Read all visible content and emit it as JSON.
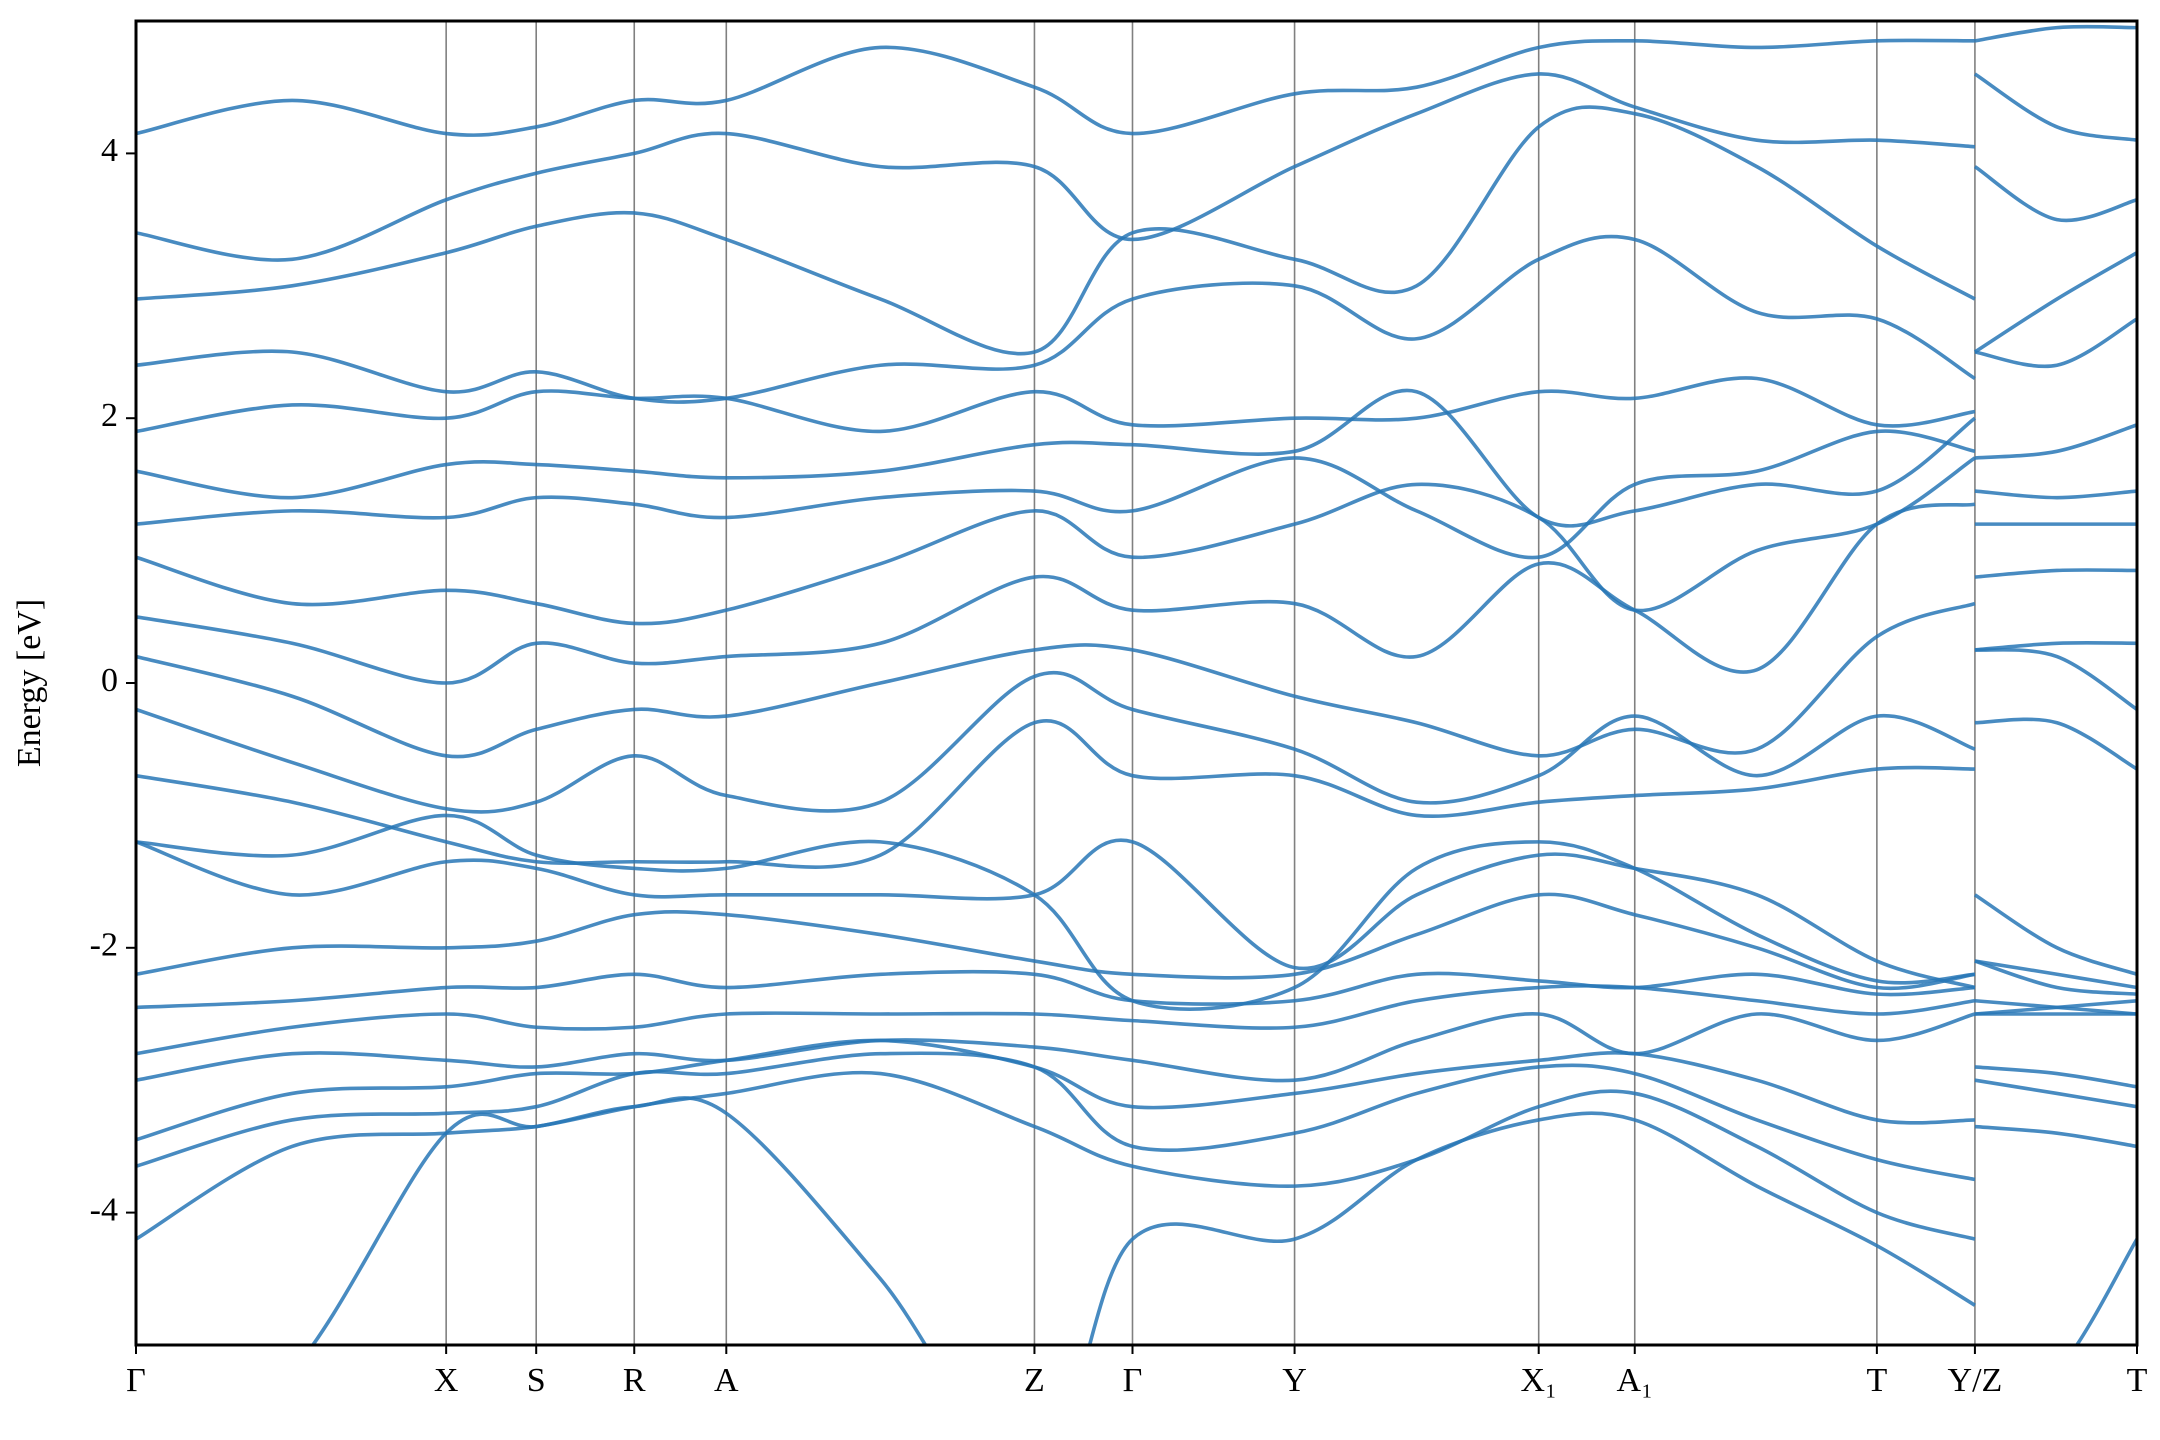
{
  "chart_data": {
    "type": "line",
    "ylabel": "Energy [eV]",
    "color": "#2877b6",
    "xlim": [
      0,
      1
    ],
    "ylim": [
      -5,
      5
    ],
    "yticks": [
      -4,
      -2,
      0,
      2,
      4
    ],
    "xticks": [
      {
        "value": 0,
        "label": "Γ"
      },
      {
        "value": 0.155,
        "label": "X"
      },
      {
        "value": 0.2,
        "label": "S"
      },
      {
        "value": 0.249,
        "label": "R"
      },
      {
        "value": 0.295,
        "label": "A"
      },
      {
        "value": 0.449,
        "label": "Z"
      },
      {
        "value": 0.498,
        "label": "Γ"
      },
      {
        "value": 0.579,
        "label": "Y"
      },
      {
        "value": 0.701,
        "label": "X₁"
      },
      {
        "value": 0.749,
        "label": "A₁"
      },
      {
        "value": 0.87,
        "label": "T"
      },
      {
        "value": 0.919,
        "label": "Y/Z"
      },
      {
        "value": 1,
        "label": "T"
      }
    ],
    "vertical_lines": true,
    "x": [
      0,
      0.078,
      0.155,
      0.2,
      0.249,
      0.295,
      0.372,
      0.449,
      0.498,
      0.579,
      0.64,
      0.701,
      0.749,
      0.81,
      0.87,
      0.919,
      0.919,
      0.96,
      1
    ],
    "series": [
      {
        "values": [
          -6,
          -5.2,
          -3.4,
          -3.35,
          -3.2,
          -3.25,
          -4.5,
          -6,
          -4.2,
          -4.2,
          -3.6,
          -3.3,
          -3.3,
          -3.8,
          -4.25,
          -4.7,
          -5.5,
          -5.2,
          -4.2
        ]
      },
      {
        "values": [
          -4.2,
          -3.5,
          -3.4,
          -3.35,
          -3.2,
          -3.1,
          -2.95,
          -3.35,
          -3.65,
          -3.8,
          -3.6,
          -3.2,
          -3.1,
          -3.5,
          -4.0,
          -4.2,
          -3.35,
          -3.4,
          -3.5
        ]
      },
      {
        "values": [
          -3.65,
          -3.3,
          -3.25,
          -3.2,
          -2.95,
          -2.95,
          -2.8,
          -2.9,
          -3.5,
          -3.4,
          -3.1,
          -2.9,
          -2.95,
          -3.3,
          -3.6,
          -3.75,
          -3.0,
          -3.1,
          -3.2
        ]
      },
      {
        "values": [
          -3.45,
          -3.1,
          -3.05,
          -2.95,
          -2.95,
          -2.85,
          -2.7,
          -2.9,
          -3.2,
          -3.1,
          -2.95,
          -2.85,
          -2.8,
          -3.0,
          -3.3,
          -3.3,
          -2.9,
          -2.95,
          -3.05
        ]
      },
      {
        "values": [
          -3.0,
          -2.8,
          -2.85,
          -2.9,
          -2.8,
          -2.85,
          -2.7,
          -2.75,
          -2.85,
          -3.0,
          -2.7,
          -2.5,
          -2.8,
          -2.5,
          -2.7,
          -2.5,
          -2.5,
          -2.5,
          -2.5
        ]
      },
      {
        "values": [
          -2.8,
          -2.6,
          -2.5,
          -2.6,
          -2.6,
          -2.5,
          -2.5,
          -2.5,
          -2.55,
          -2.6,
          -2.4,
          -2.3,
          -2.3,
          -2.4,
          -2.5,
          -2.4,
          -2.5,
          -2.45,
          -2.4
        ]
      },
      {
        "values": [
          -2.45,
          -2.4,
          -2.3,
          -2.3,
          -2.2,
          -2.3,
          -2.2,
          -2.2,
          -2.4,
          -2.4,
          -2.2,
          -2.25,
          -2.3,
          -2.2,
          -2.35,
          -2.3,
          -2.1,
          -2.2,
          -2.3
        ]
      },
      {
        "values": [
          -2.2,
          -2.0,
          -2.0,
          -1.95,
          -1.75,
          -1.75,
          -1.9,
          -2.1,
          -2.2,
          -2.2,
          -1.9,
          -1.6,
          -1.75,
          -2.0,
          -2.3,
          -2.2,
          -1.6,
          -2.0,
          -2.2
        ]
      },
      {
        "values": [
          -1.2,
          -1.6,
          -1.35,
          -1.4,
          -1.6,
          -1.6,
          -1.6,
          -1.6,
          -1.2,
          -2.15,
          -1.6,
          -1.3,
          -1.4,
          -1.6,
          -2.1,
          -2.3,
          -2.1,
          -2.3,
          -2.35
        ]
      },
      {
        "values": [
          -1.2,
          -1.3,
          -1.0,
          -1.3,
          -1.4,
          -1.4,
          -1.2,
          -1.6,
          -2.4,
          -2.3,
          -1.4,
          -1.2,
          -1.4,
          -1.9,
          -2.25,
          -2.2,
          -2.4,
          -2.45,
          -2.5
        ]
      },
      {
        "values": [
          -0.7,
          -0.9,
          -1.2,
          -1.35,
          -1.35,
          -1.35,
          -1.3,
          -0.3,
          -0.7,
          -0.7,
          -1.0,
          -0.9,
          -0.85,
          -0.8,
          -0.65,
          -0.65,
          -0.3,
          -0.3,
          -0.65
        ]
      },
      {
        "values": [
          -0.2,
          -0.6,
          -0.95,
          -0.9,
          -0.55,
          -0.85,
          -0.9,
          0.05,
          -0.2,
          -0.5,
          -0.9,
          -0.7,
          -0.25,
          -0.7,
          -0.25,
          -0.5,
          0.25,
          0.2,
          -0.2
        ]
      },
      {
        "values": [
          0.2,
          -0.1,
          -0.55,
          -0.35,
          -0.2,
          -0.25,
          0.0,
          0.25,
          0.25,
          -0.1,
          -0.3,
          -0.55,
          -0.35,
          -0.5,
          0.35,
          0.6,
          0.25,
          0.3,
          0.3
        ]
      },
      {
        "values": [
          0.5,
          0.3,
          0.0,
          0.3,
          0.15,
          0.2,
          0.3,
          0.8,
          0.55,
          0.6,
          0.2,
          0.9,
          0.55,
          0.1,
          1.2,
          1.35,
          0.8,
          0.85,
          0.85
        ]
      },
      {
        "values": [
          0.95,
          0.6,
          0.7,
          0.6,
          0.45,
          0.55,
          0.9,
          1.3,
          0.95,
          1.2,
          1.5,
          1.25,
          0.55,
          1.0,
          1.2,
          1.7,
          1.2,
          1.2,
          1.2
        ]
      },
      {
        "values": [
          1.2,
          1.3,
          1.25,
          1.4,
          1.35,
          1.25,
          1.4,
          1.45,
          1.3,
          1.7,
          1.3,
          0.95,
          1.5,
          1.6,
          1.9,
          1.75,
          1.45,
          1.4,
          1.45
        ]
      },
      {
        "values": [
          1.6,
          1.4,
          1.65,
          1.65,
          1.6,
          1.55,
          1.6,
          1.8,
          1.8,
          1.75,
          2.2,
          1.25,
          1.3,
          1.5,
          1.45,
          2.0,
          1.7,
          1.75,
          1.95
        ]
      },
      {
        "values": [
          1.9,
          2.1,
          2.0,
          2.2,
          2.15,
          2.15,
          1.9,
          2.2,
          1.95,
          2.0,
          2.0,
          2.2,
          2.15,
          2.3,
          1.95,
          2.05,
          2.5,
          2.4,
          2.75
        ]
      },
      {
        "values": [
          2.4,
          2.5,
          2.2,
          2.35,
          2.15,
          2.15,
          2.4,
          2.4,
          2.9,
          3.0,
          2.6,
          3.2,
          3.35,
          2.8,
          2.75,
          2.3,
          2.5,
          2.9,
          3.25
        ]
      },
      {
        "values": [
          2.9,
          3.0,
          3.25,
          3.45,
          3.55,
          3.35,
          2.9,
          2.5,
          3.4,
          3.2,
          3.0,
          4.2,
          4.3,
          3.9,
          3.3,
          2.9,
          3.9,
          3.5,
          3.65
        ]
      },
      {
        "values": [
          3.4,
          3.2,
          3.65,
          3.85,
          4.0,
          4.15,
          3.9,
          3.9,
          3.35,
          3.9,
          4.3,
          4.6,
          4.35,
          4.1,
          4.1,
          4.05,
          4.6,
          4.2,
          4.1
        ]
      },
      {
        "values": [
          4.15,
          4.4,
          4.15,
          4.2,
          4.4,
          4.4,
          4.8,
          4.5,
          4.15,
          4.45,
          4.5,
          4.8,
          4.85,
          4.8,
          4.85,
          4.85,
          4.85,
          4.95,
          4.95
        ]
      }
    ]
  }
}
